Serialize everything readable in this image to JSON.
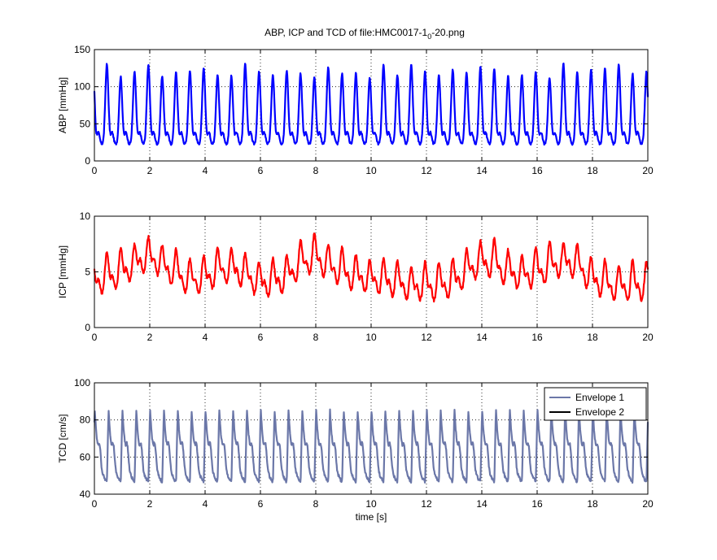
{
  "figure": {
    "title_main": "ABP, ICP and TCD of file:HMC0017-1",
    "title_sub": "0",
    "title_suffix": "-20.png"
  },
  "chart_data": [
    {
      "type": "line",
      "id": "abp",
      "title": "",
      "xlabel": "",
      "ylabel": "ABP [mmHg]",
      "xlim": [
        0,
        20
      ],
      "ylim": [
        0,
        150
      ],
      "xticks": [
        0,
        2,
        4,
        6,
        8,
        10,
        12,
        14,
        16,
        18,
        20
      ],
      "yticks": [
        0,
        50,
        100,
        150
      ],
      "grid": true,
      "color": "#0000ff",
      "signal": {
        "beat_period_s": 0.5,
        "first_beat_s": 0.45,
        "trough": 22,
        "peak_range": [
          112,
          132
        ],
        "secondary_peak": 40
      },
      "series": [
        {
          "color": "#0000ff"
        }
      ]
    },
    {
      "type": "line",
      "id": "icp",
      "title": "",
      "xlabel": "",
      "ylabel": "ICP [mmHg]",
      "xlim": [
        0,
        20
      ],
      "ylim": [
        0,
        10
      ],
      "xticks": [
        0,
        2,
        4,
        6,
        8,
        10,
        12,
        14,
        16,
        18,
        20
      ],
      "yticks": [
        0,
        5,
        10
      ],
      "grid": true,
      "color": "#ff0000",
      "signal": {
        "beat_period_s": 0.5,
        "first_beat_s": 0.45,
        "trough_range": [
          1.5,
          3.0
        ],
        "peak_range": [
          6.0,
          9.7
        ],
        "respiratory_peaks_s": [
          1.95,
          4.9,
          7.85,
          14.0,
          17.1
        ]
      },
      "series": [
        {
          "color": "#ff0000"
        }
      ]
    },
    {
      "type": "line",
      "id": "tcd",
      "title": "",
      "xlabel": "time [s]",
      "ylabel": "TCD [cm/s]",
      "xlim": [
        0,
        20
      ],
      "ylim": [
        40,
        100
      ],
      "xticks": [
        0,
        2,
        4,
        6,
        8,
        10,
        12,
        14,
        16,
        18,
        20
      ],
      "yticks": [
        40,
        60,
        80,
        100
      ],
      "grid": true,
      "signal": {
        "beat_period_s": 0.5,
        "first_beat_s": 0.45,
        "trough": 44,
        "peak": 86
      },
      "legend_position": "top-right",
      "series": [
        {
          "name": "Envelope 1",
          "color": "#6b77a8"
        },
        {
          "name": "Envelope 2",
          "color": "#000000"
        }
      ]
    }
  ]
}
